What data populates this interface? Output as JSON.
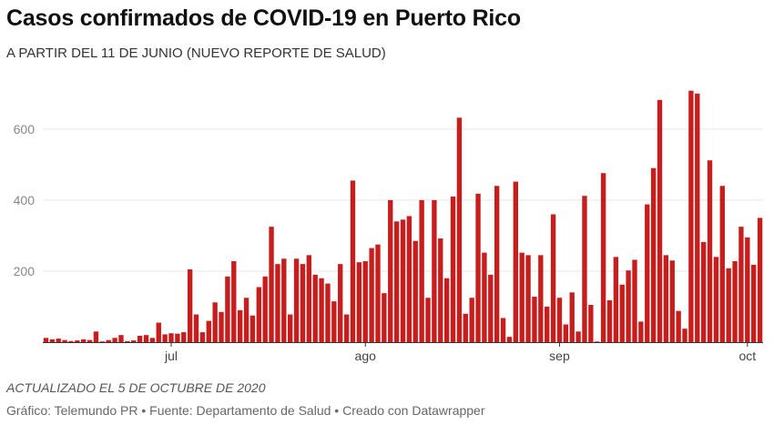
{
  "header": {
    "title": "Casos confirmados de COVID-19 en Puerto Rico",
    "subtitle": "A PARTIR DEL 11 DE JUNIO (NUEVO REPORTE DE SALUD)"
  },
  "footer": {
    "updated": "ACTUALIZADO EL 5 DE OCTUBRE DE 2020",
    "credit": "Gráfico: Telemundo PR • Fuente: Departamento de Salud • Creado con Datawrapper"
  },
  "colors": {
    "bar": "#c71e1d",
    "grid": "#e6e6e6",
    "axis": "#333333",
    "label": "#888888"
  },
  "chart_data": {
    "type": "bar",
    "title": "Casos confirmados de COVID-19 en Puerto Rico",
    "subtitle": "A PARTIR DEL 11 DE JUNIO (NUEVO REPORTE DE SALUD)",
    "xlabel": "",
    "ylabel": "",
    "ylim": [
      0,
      720
    ],
    "yticks": [
      200,
      400,
      600
    ],
    "xticks": [
      {
        "label": "jul",
        "index": 20
      },
      {
        "label": "ago",
        "index": 51
      },
      {
        "label": "sep",
        "index": 82
      },
      {
        "label": "oct",
        "index": 112
      }
    ],
    "grid": true,
    "start_date": "2020-06-11",
    "values": [
      12,
      8,
      10,
      6,
      3,
      5,
      8,
      6,
      30,
      2,
      6,
      12,
      20,
      3,
      5,
      18,
      20,
      12,
      55,
      22,
      25,
      24,
      28,
      205,
      78,
      28,
      60,
      112,
      85,
      185,
      228,
      90,
      125,
      75,
      155,
      185,
      325,
      220,
      235,
      78,
      235,
      220,
      245,
      190,
      180,
      165,
      115,
      220,
      78,
      455,
      225,
      228,
      265,
      275,
      138,
      400,
      340,
      345,
      355,
      285,
      400,
      125,
      400,
      292,
      180,
      410,
      632,
      80,
      125,
      418,
      252,
      190,
      440,
      68,
      15,
      452,
      252,
      245,
      128,
      245,
      100,
      360,
      125,
      50,
      140,
      30,
      412,
      105,
      2,
      476,
      118,
      240,
      162,
      202,
      232,
      58,
      388,
      490,
      682,
      245,
      230,
      88,
      38,
      708,
      700,
      282,
      512,
      240,
      440,
      208,
      228,
      325,
      295,
      218,
      350
    ]
  }
}
